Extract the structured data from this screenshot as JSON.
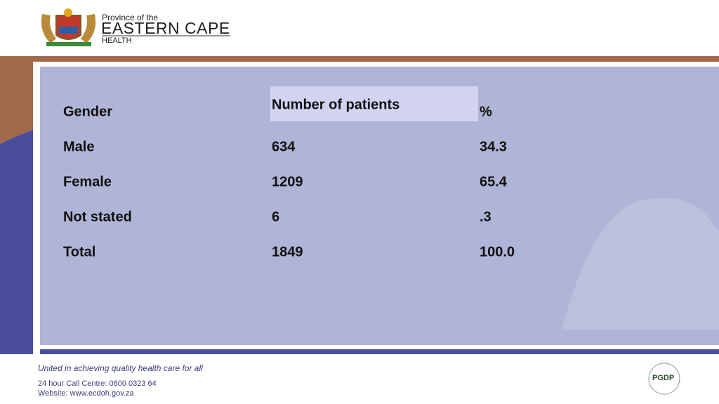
{
  "header": {
    "province": "Province of the",
    "name": "EASTERN CAPE",
    "department": "HEALTH"
  },
  "table": {
    "columns": [
      "Gender",
      "Number of patients",
      "%"
    ],
    "rows": [
      [
        "Male",
        "634",
        "34.3"
      ],
      [
        "Female",
        "1209",
        "65.4"
      ],
      [
        "Not stated",
        "6",
        ".3"
      ],
      [
        "Total",
        "1849",
        "100.0"
      ]
    ]
  },
  "footer": {
    "slogan": "United in achieving quality health care for all",
    "call_centre": "24 hour Call Centre: 0800 0323 64",
    "website": "Website: www.ecdoh.gov.za",
    "badge": "PGDP"
  }
}
